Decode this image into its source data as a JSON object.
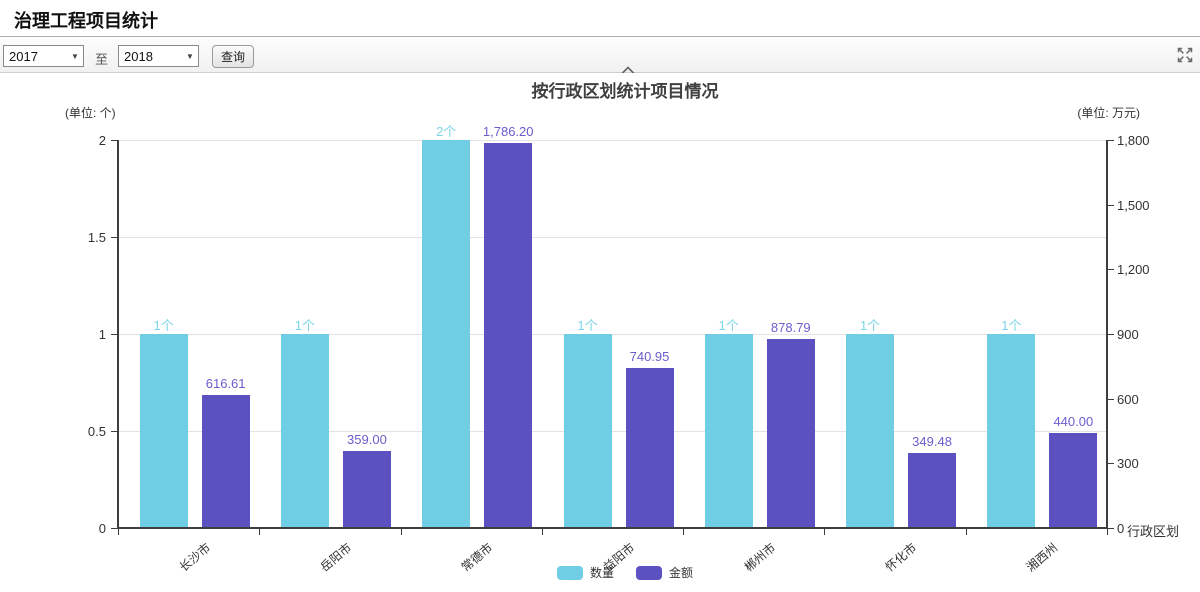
{
  "page": {
    "title": "治理工程项目统计"
  },
  "toolbar": {
    "year_from": "2017",
    "to_label": "至",
    "year_to": "2018",
    "query_button": "查询"
  },
  "icons": {
    "collapse": "chevron-up-icon",
    "fullscreen": "fullscreen-expand-icon",
    "select_arrow": "chevron-down-icon"
  },
  "chart_data": {
    "type": "bar",
    "title": "按行政区划统计项目情况",
    "grid": true,
    "legend_position": "bottom",
    "categories": [
      "长沙市",
      "岳阳市",
      "常德市",
      "益阳市",
      "郴州市",
      "怀化市",
      "湘西州"
    ],
    "left_axis": {
      "unit_label": "(单位: 个)",
      "min": 0,
      "max": 2,
      "tick_step": 0.5,
      "ticks": [
        "2",
        "1.5",
        "1",
        "0.5",
        "0"
      ]
    },
    "right_axis": {
      "unit_label": "(单位: 万元)",
      "min": 0,
      "max": 1800,
      "tick_step": 300,
      "ticks": [
        "1,800",
        "1,500",
        "1,200",
        "900",
        "600",
        "300",
        "0"
      ],
      "axis_name": "行政区划"
    },
    "series": [
      {
        "name": "数量",
        "axis": "left",
        "color": "#6fcee3",
        "label_color": "#7cd5e7",
        "values": [
          1,
          1,
          2,
          1,
          1,
          1,
          1
        ],
        "labels": [
          "1个",
          "1个",
          "2个",
          "1个",
          "1个",
          "1个",
          "1个"
        ]
      },
      {
        "name": "金额",
        "axis": "right",
        "color": "#5b51c0",
        "label_color": "#6a5ecf",
        "values": [
          616.61,
          359.0,
          1786.2,
          740.95,
          878.79,
          349.48,
          440.0
        ],
        "labels": [
          "616.61",
          "359.00",
          "1,786.20",
          "740.95",
          "878.79",
          "349.48",
          "440.00"
        ]
      }
    ]
  }
}
